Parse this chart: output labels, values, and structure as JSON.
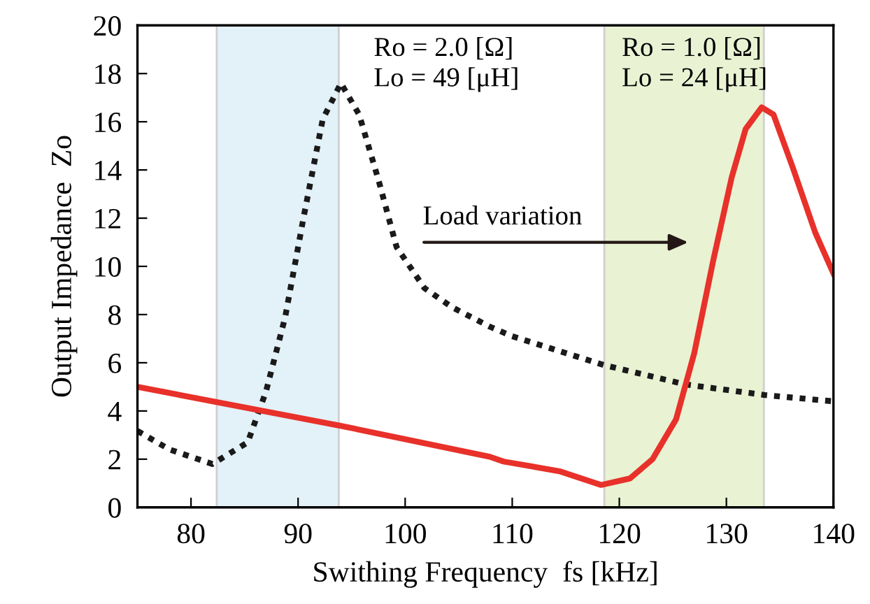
{
  "chart_data": {
    "type": "line",
    "xlabel": "Swithing Frequency  fs [kHz]",
    "ylabel": "Output Impedance  Zo",
    "xlim": [
      75,
      140
    ],
    "xticks": [
      80,
      90,
      100,
      110,
      120,
      130,
      140
    ],
    "ylim": [
      0,
      20
    ],
    "yticks": [
      0,
      2,
      4,
      6,
      8,
      10,
      12,
      14,
      16,
      18,
      20
    ],
    "grid": false,
    "series": [
      {
        "color": "#1a1a1a",
        "line_style": "dotted",
        "x": [
          75,
          78,
          82.0,
          85.3,
          87.0,
          88.8,
          90.5,
          92.3,
          94.0,
          95.7,
          97.5,
          99.2,
          101.8,
          104.4,
          107.9,
          110,
          118.6,
          126.2,
          133.6,
          140
        ],
        "values": [
          3.17,
          2.4,
          1.8,
          2.7,
          4.8,
          7.9,
          12.0,
          16.1,
          17.6,
          16.3,
          13.6,
          10.8,
          9.1,
          8.3,
          7.5,
          7.1,
          5.9,
          5.1,
          4.66,
          4.4
        ]
      },
      {
        "color": "#e8312a",
        "line_style": "solid",
        "x": [
          75,
          93.8,
          107.9,
          109.2,
          114.4,
          118.3,
          121.0,
          123.1,
          125.3,
          127.0,
          128.8,
          130.5,
          131.8,
          133.3,
          134.4,
          136.2,
          138.3,
          140
        ],
        "values": [
          5.0,
          3.4,
          2.1,
          1.9,
          1.5,
          0.93,
          1.2,
          2.0,
          3.65,
          6.4,
          10.3,
          13.7,
          15.7,
          16.6,
          16.3,
          14.1,
          11.4,
          9.7
        ]
      }
    ],
    "bands": [
      {
        "axis": "x",
        "from": 82.4,
        "to": 93.8,
        "color": "#e3f1f9",
        "label": "Ro = 2.0 [Ω]\nLo = 49 [μH]"
      },
      {
        "axis": "x",
        "from": 118.6,
        "to": 133.5,
        "color": "#e9f2d3",
        "label": "Ro = 1.0 [Ω]\nLo = 24 [μH]"
      }
    ],
    "annotations": [
      "Load variation"
    ]
  }
}
